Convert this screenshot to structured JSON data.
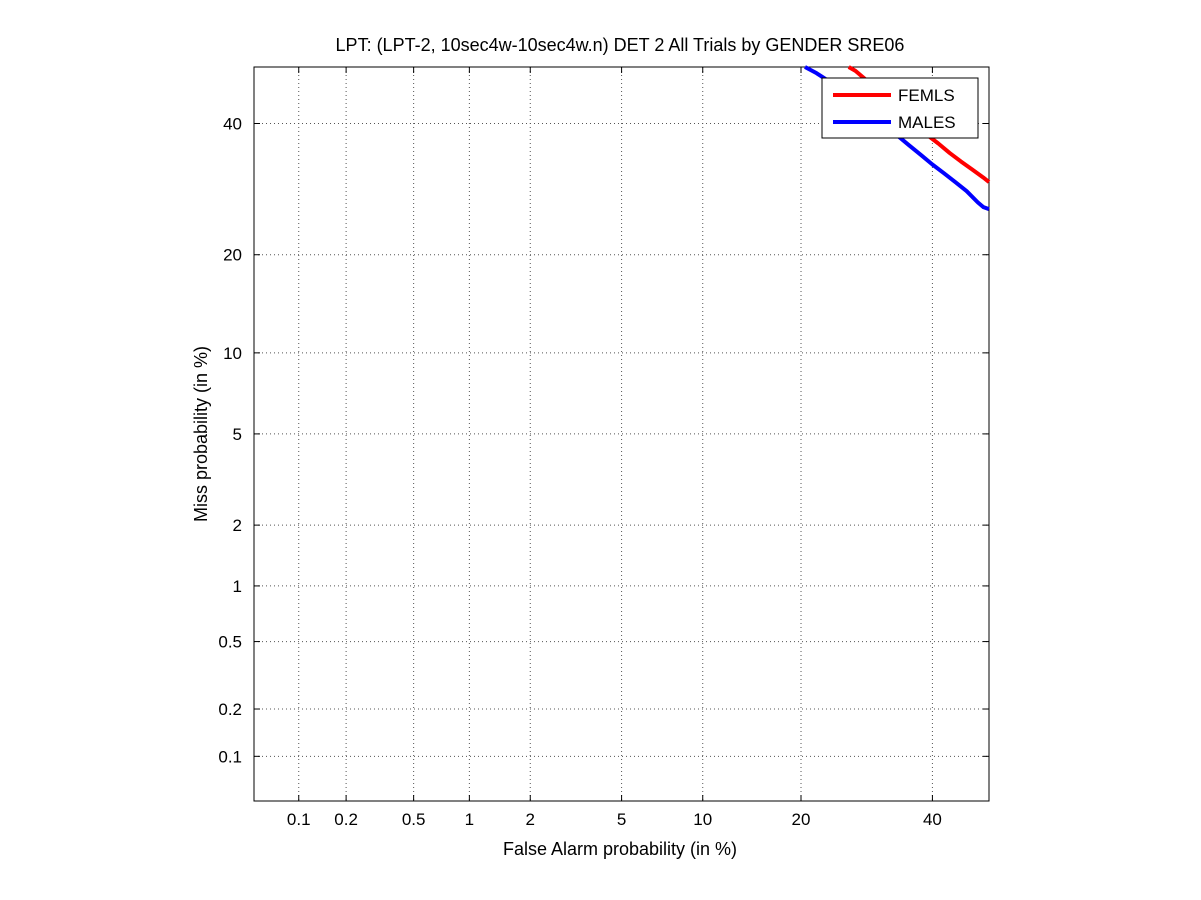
{
  "chart_data": {
    "type": "line",
    "title": "LPT: (LPT-2, 10sec4w-10sec4w.n) DET 2 All Trials by GENDER SRE06",
    "xlabel": "False Alarm probability (in %)",
    "ylabel": "Miss probability (in %)",
    "xscale": "normal-deviate",
    "yscale": "normal-deviate",
    "xlim": [
      0.05,
      50
    ],
    "ylim": [
      0.05,
      50
    ],
    "x_ticks": [
      "0.1",
      "0.2",
      "0.5",
      "1",
      "2",
      "5",
      "10",
      "20",
      "40"
    ],
    "y_ticks": [
      "0.1",
      "0.2",
      "0.5",
      "1",
      "2",
      "5",
      "10",
      "20",
      "40"
    ],
    "grid": true,
    "legend_position": "top-right",
    "series": [
      {
        "name": "FEMLS",
        "color": "#ff0000",
        "x": [
          26.5,
          27.5,
          29,
          31,
          33,
          35,
          37,
          39,
          41,
          43,
          45,
          47,
          49,
          50
        ],
        "y": [
          50,
          49.3,
          47.8,
          45.5,
          43.4,
          41.5,
          39.7,
          38.1,
          36.6,
          35.0,
          33.6,
          32.3,
          31.0,
          30.3
        ]
      },
      {
        "name": "MALES",
        "color": "#0000ff",
        "x": [
          20.5,
          22,
          24,
          26,
          28,
          30,
          32,
          34,
          36,
          38,
          40,
          42,
          44,
          46,
          48,
          49,
          50
        ],
        "y": [
          50,
          48.9,
          47.2,
          45.5,
          43.8,
          41.8,
          39.8,
          38.0,
          36.3,
          34.7,
          33.1,
          31.7,
          30.3,
          28.9,
          27.2,
          26.5,
          26.2
        ]
      }
    ]
  }
}
